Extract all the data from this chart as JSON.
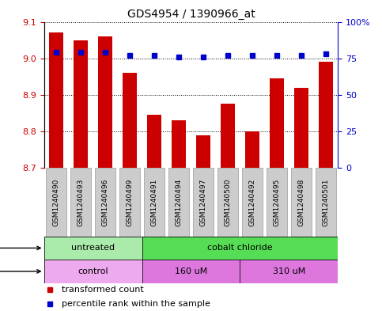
{
  "title": "GDS4954 / 1390966_at",
  "samples": [
    "GSM1240490",
    "GSM1240493",
    "GSM1240496",
    "GSM1240499",
    "GSM1240491",
    "GSM1240494",
    "GSM1240497",
    "GSM1240500",
    "GSM1240492",
    "GSM1240495",
    "GSM1240498",
    "GSM1240501"
  ],
  "bar_values": [
    9.07,
    9.05,
    9.06,
    8.96,
    8.845,
    8.83,
    8.79,
    8.875,
    8.8,
    8.945,
    8.92,
    8.99
  ],
  "percentile_values": [
    79,
    79,
    79,
    77,
    77,
    76,
    76,
    77,
    77,
    77,
    77,
    78
  ],
  "ylim_left": [
    8.7,
    9.1
  ],
  "ylim_right": [
    0,
    100
  ],
  "yticks_left": [
    8.7,
    8.8,
    8.9,
    9.0,
    9.1
  ],
  "yticks_right": [
    0,
    25,
    50,
    75,
    100
  ],
  "yticklabels_right": [
    "0",
    "25",
    "50",
    "75",
    "100%"
  ],
  "bar_color": "#cc0000",
  "dot_color": "#0000cc",
  "bar_width": 0.6,
  "agent_labels": [
    {
      "label": "untreated",
      "start": 0,
      "end": 4,
      "color": "#aaeaaa"
    },
    {
      "label": "cobalt chloride",
      "start": 4,
      "end": 12,
      "color": "#55dd55"
    }
  ],
  "dose_labels": [
    {
      "label": "control",
      "start": 0,
      "end": 4,
      "color": "#eeaaee"
    },
    {
      "label": "160 uM",
      "start": 4,
      "end": 8,
      "color": "#dd77dd"
    },
    {
      "label": "310 uM",
      "start": 8,
      "end": 12,
      "color": "#dd77dd"
    }
  ],
  "legend_bar_label": "transformed count",
  "legend_dot_label": "percentile rank within the sample",
  "grid_color": "black",
  "left_tick_color": "#cc0000",
  "right_tick_color": "#0000cc",
  "sample_box_color": "#cccccc",
  "sample_box_edgecolor": "#999999"
}
